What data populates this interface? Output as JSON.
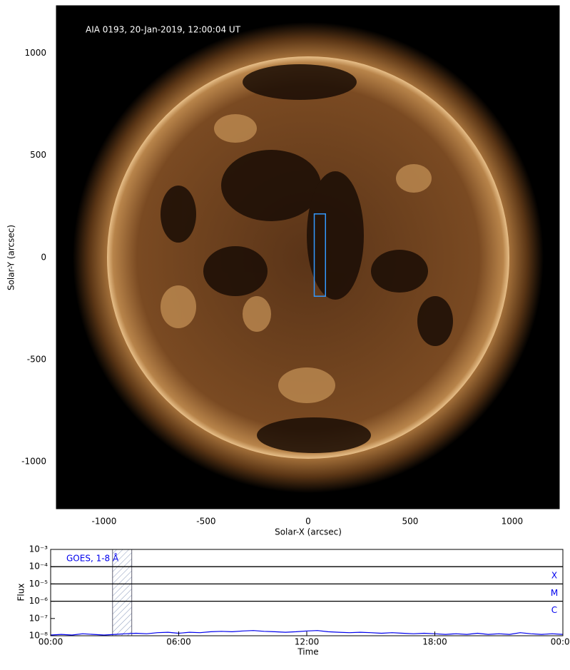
{
  "chart_data": [
    {
      "type": "image",
      "annotation": "AIA 0193, 20-Jan-2019, 12:00:04 UT",
      "xlabel": "Solar-X (arcsec)",
      "ylabel": "Solar-Y (arcsec)",
      "xlim": [
        -1234,
        1231
      ],
      "ylim": [
        -1230,
        1232
      ],
      "xticks": [
        -1000,
        -500,
        0,
        500,
        1000
      ],
      "yticks": [
        -1000,
        -500,
        0,
        500,
        1000
      ],
      "box": {
        "x": [
          30,
          85
        ],
        "y": [
          -190,
          213
        ],
        "color": "#3399ff"
      }
    },
    {
      "type": "line",
      "legend": "GOES, 1-8 Å",
      "xlabel": "Time",
      "ylabel": "Flux",
      "log_y": true,
      "xlim": [
        0,
        24
      ],
      "xticks": [
        {
          "value": 0,
          "label": "00:00"
        },
        {
          "value": 6,
          "label": "06:00"
        },
        {
          "value": 12,
          "label": "12:00"
        },
        {
          "value": 18,
          "label": "18:00"
        },
        {
          "value": 24,
          "label": "00:00"
        }
      ],
      "ylim": [
        1e-08,
        0.001
      ],
      "yticks": [
        {
          "value": 1e-08,
          "label": "10⁻⁸"
        },
        {
          "value": 1e-07,
          "label": "10⁻⁷"
        },
        {
          "value": 1e-06,
          "label": "10⁻⁶"
        },
        {
          "value": 1e-05,
          "label": "10⁻⁵"
        },
        {
          "value": 0.0001,
          "label": "10⁻⁴"
        },
        {
          "value": 0.001,
          "label": "10⁻³"
        }
      ],
      "levels": [
        {
          "value": 0.0001,
          "label": "X"
        },
        {
          "value": 1e-05,
          "label": "M"
        },
        {
          "value": 1e-06,
          "label": "C"
        }
      ],
      "highlight": [
        2.9,
        3.8
      ],
      "x": [
        0,
        0.5,
        1,
        1.5,
        2,
        2.5,
        3,
        3.5,
        4,
        4.5,
        5,
        5.5,
        6,
        6.5,
        7,
        7.5,
        8,
        8.5,
        9,
        9.5,
        10,
        10.5,
        11,
        11.5,
        12,
        12.5,
        13,
        13.5,
        14,
        14.5,
        15,
        15.5,
        16,
        16.5,
        17,
        17.5,
        18,
        18.5,
        19,
        19.5,
        20,
        20.5,
        21,
        21.5,
        22,
        22.5,
        23,
        23.5,
        24
      ],
      "series": [
        {
          "name": "GOES, 1-8 Å",
          "color": "#0000ee",
          "values": [
            1.1e-08,
            1.2e-08,
            1.1e-08,
            1.3e-08,
            1.2e-08,
            1.1e-08,
            1.2e-08,
            1.3e-08,
            1.4e-08,
            1.3e-08,
            1.5e-08,
            1.6e-08,
            1.4e-08,
            1.6e-08,
            1.5e-08,
            1.7e-08,
            1.8e-08,
            1.7e-08,
            1.9e-08,
            2e-08,
            1.8e-08,
            1.7e-08,
            1.6e-08,
            1.7e-08,
            1.9e-08,
            2e-08,
            1.7e-08,
            1.6e-08,
            1.5e-08,
            1.6e-08,
            1.5e-08,
            1.4e-08,
            1.5e-08,
            1.4e-08,
            1.3e-08,
            1.4e-08,
            1.3e-08,
            1.2e-08,
            1.3e-08,
            1.2e-08,
            1.4e-08,
            1.2e-08,
            1.3e-08,
            1.2e-08,
            1.5e-08,
            1.3e-08,
            1.2e-08,
            1.3e-08,
            1.2e-08
          ]
        }
      ]
    }
  ]
}
